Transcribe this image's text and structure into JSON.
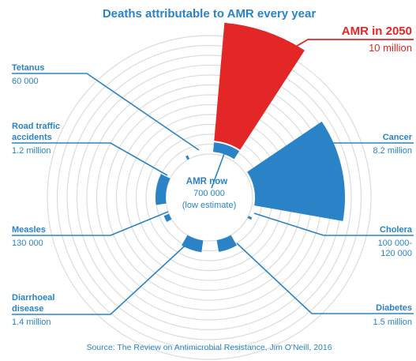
{
  "title": "Deaths attributable to AMR every year",
  "source": "Source: The Review on Antimicrobial Resistance, Jim O'Neill, 2016",
  "amr_2050": {
    "name": "AMR in 2050",
    "value": "10 million"
  },
  "amr_now": {
    "name": "AMR now",
    "value": "700 000",
    "note": "(low estimate)"
  },
  "causes": [
    {
      "name": [
        "Tetanus"
      ],
      "value": [
        "60 000"
      ]
    },
    {
      "name": [
        "Road traffic",
        "accidents"
      ],
      "value": [
        "1.2 million"
      ]
    },
    {
      "name": [
        "Measles"
      ],
      "value": [
        "130 000"
      ]
    },
    {
      "name": [
        "Diarrhoeal",
        "disease"
      ],
      "value": [
        "1.4 million"
      ]
    },
    {
      "name": [
        "Cancer"
      ],
      "value": [
        "8.2 million"
      ]
    },
    {
      "name": [
        "Cholera"
      ],
      "value": [
        "100 000-",
        "120 000"
      ]
    },
    {
      "name": [
        "Diabetes"
      ],
      "value": [
        "1.5 million"
      ]
    }
  ]
}
